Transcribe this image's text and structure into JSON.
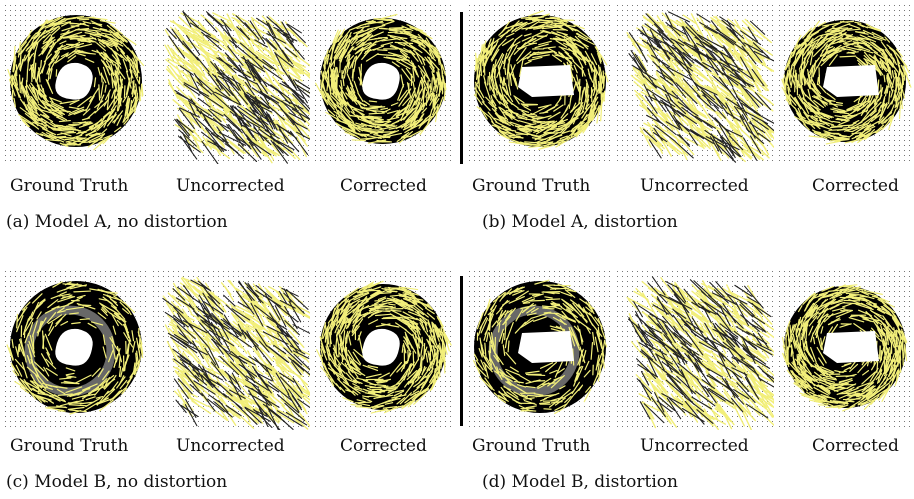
{
  "figure": {
    "rows": [
      {
        "groups": [
          {
            "caption": "(a) Model A, no distortion",
            "panels": [
              {
                "label": "Ground Truth",
                "kind": "ring"
              },
              {
                "label": "Uncorrected",
                "kind": "smear"
              },
              {
                "label": "Corrected",
                "kind": "ring"
              }
            ]
          },
          {
            "caption": "(b) Model A, distortion",
            "panels": [
              {
                "label": "Ground Truth",
                "kind": "ring-cut"
              },
              {
                "label": "Uncorrected",
                "kind": "smear"
              },
              {
                "label": "Corrected",
                "kind": "ring-cut"
              }
            ]
          }
        ]
      },
      {
        "groups": [
          {
            "caption": "(c) Model B, no distortion",
            "panels": [
              {
                "label": "Ground Truth",
                "kind": "ring-gray"
              },
              {
                "label": "Uncorrected",
                "kind": "smear"
              },
              {
                "label": "Corrected",
                "kind": "ring"
              }
            ]
          },
          {
            "caption": "(d) Model B, distortion",
            "panels": [
              {
                "label": "Ground Truth",
                "kind": "ring-cut-gray"
              },
              {
                "label": "Uncorrected",
                "kind": "smear"
              },
              {
                "label": "Corrected",
                "kind": "ring-cut"
              }
            ]
          }
        ]
      }
    ],
    "colors": {
      "arrow": "#f2ef7a",
      "disk": "#000000",
      "grid_dots": "#777777",
      "ring_gray": "#7a7a7a"
    }
  }
}
